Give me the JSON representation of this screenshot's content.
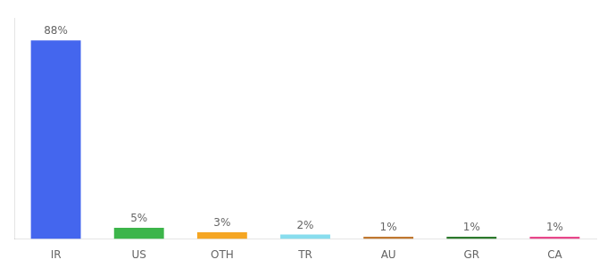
{
  "chart_data": {
    "type": "bar",
    "categories": [
      "IR",
      "US",
      "OTH",
      "TR",
      "AU",
      "GR",
      "CA"
    ],
    "values": [
      88,
      5,
      3,
      2,
      1,
      1,
      1
    ],
    "value_labels": [
      "88%",
      "5%",
      "3%",
      "2%",
      "1%",
      "1%",
      "1%"
    ],
    "data_labels": true,
    "colors": [
      "#4466ee",
      "#3cb54a",
      "#f5a623",
      "#88ddee",
      "#c07830",
      "#2d7a2d",
      "#e8478a"
    ],
    "ylim": [
      0,
      98
    ],
    "tick_labels": "x",
    "grid": false
  }
}
